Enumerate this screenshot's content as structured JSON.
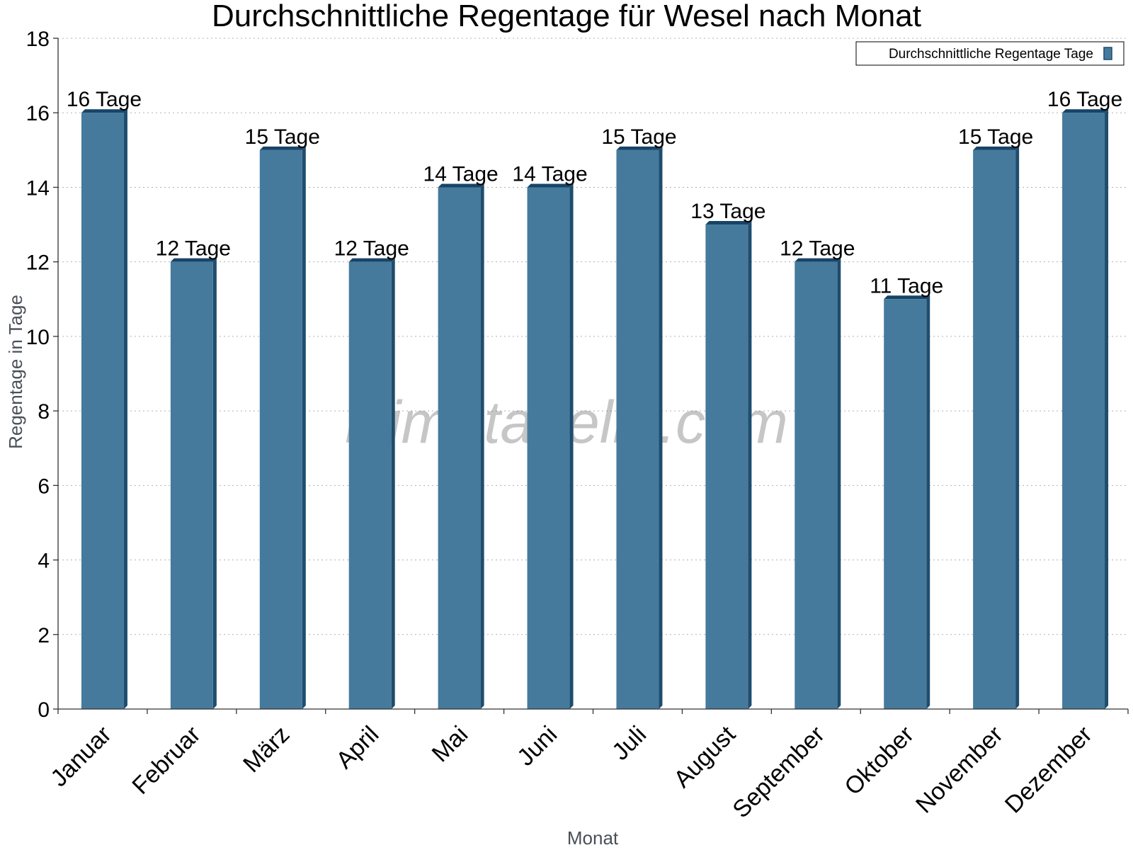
{
  "chart_data": {
    "type": "bar",
    "title": "Durchschnittliche Regentage für Wesel nach Monat",
    "xlabel": "Monat",
    "ylabel": "Regentage in Tage",
    "categories": [
      "Januar",
      "Februar",
      "März",
      "April",
      "Mai",
      "Juni",
      "Juli",
      "August",
      "September",
      "Oktober",
      "November",
      "Dezember"
    ],
    "series": [
      {
        "name": "Durchschnittliche Regentage Tage",
        "values": [
          16,
          12,
          15,
          12,
          14,
          14,
          15,
          13,
          12,
          11,
          15,
          16
        ],
        "data_labels": [
          "16 Tage",
          "12 Tage",
          "15 Tage",
          "12 Tage",
          "14 Tage",
          "14 Tage",
          "15 Tage",
          "13 Tage",
          "12 Tage",
          "11 Tage",
          "15 Tage",
          "16 Tage"
        ]
      }
    ],
    "ylim": [
      0,
      18
    ],
    "yticks": [
      0,
      2,
      4,
      6,
      8,
      10,
      12,
      14,
      16,
      18
    ],
    "grid": true,
    "legend_position": "top-right",
    "colors": {
      "bar": "#457a9c",
      "bar_side": "#1e4d6e",
      "bar_top": "#174466"
    },
    "watermark": "klimatabelle.com"
  }
}
